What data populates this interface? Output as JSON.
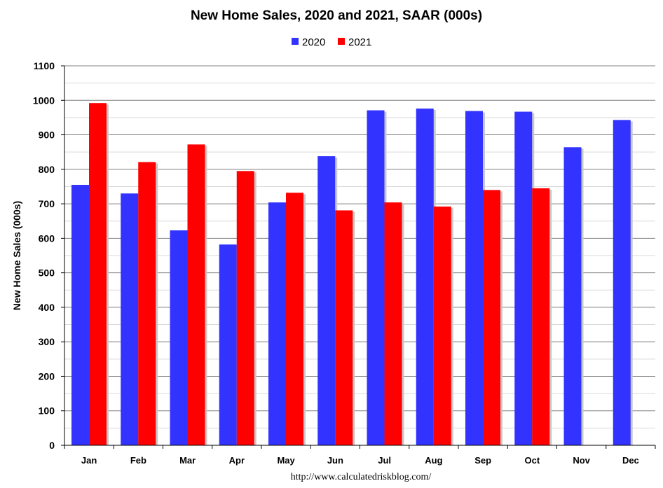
{
  "chart_data": {
    "type": "bar",
    "title": "New Home Sales,  2020 and 2021, SAAR (000s)",
    "xlabel": "",
    "ylabel": "New Home Sales (000s)",
    "ylim": [
      0,
      1100
    ],
    "yticks": [
      0,
      100,
      200,
      300,
      400,
      500,
      600,
      700,
      800,
      900,
      1000,
      1100
    ],
    "grid": true,
    "legend_position": "top-center",
    "categories": [
      "Jan",
      "Feb",
      "Mar",
      "Apr",
      "May",
      "Jun",
      "Jul",
      "Aug",
      "Sep",
      "Oct",
      "Nov",
      "Dec"
    ],
    "series": [
      {
        "name": "2020",
        "color": "#3333ff",
        "values": [
          755,
          730,
          623,
          582,
          704,
          838,
          971,
          976,
          969,
          967,
          864,
          943
        ]
      },
      {
        "name": "2021",
        "color": "#ff0000",
        "values": [
          992,
          821,
          872,
          795,
          732,
          681,
          704,
          692,
          740,
          745,
          null,
          null
        ]
      }
    ],
    "source": "http://www.calculatedriskblog.com/"
  }
}
